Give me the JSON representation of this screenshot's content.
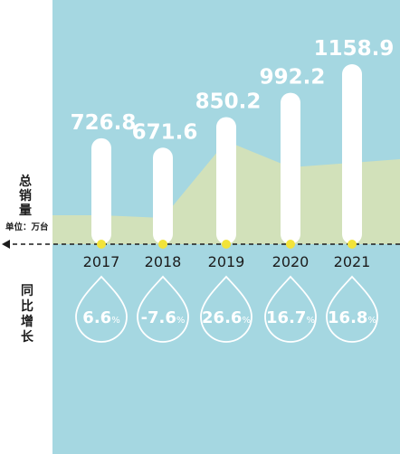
{
  "chart_data": {
    "type": "bar",
    "categories": [
      "2017",
      "2018",
      "2019",
      "2020",
      "2021"
    ],
    "series": [
      {
        "values": [
          726.8,
          671.6,
          850.2,
          992.2,
          1158.9
        ]
      }
    ],
    "growth": {
      "values": [
        6.6,
        -7.6,
        26.6,
        16.7,
        16.8
      ],
      "labels": [
        "6.6%",
        "-7.6%",
        "26.6%",
        "16.7%",
        "16.8%"
      ]
    },
    "value_labels": [
      "726.8",
      "671.6",
      "850.2",
      "992.2",
      "1158.9"
    ],
    "ylabel": "总销量",
    "unit": "单位：万台",
    "growth_label": "同比增长",
    "colors": {
      "background": "#a5d7e1",
      "left_panel": "#ffffff",
      "bar": "#ffffff",
      "area": "#d6e2b6",
      "dot": "#f2e33a",
      "baseline": "#1c1c1c",
      "text_dark": "#1c1c1c",
      "text_light": "#ffffff"
    }
  }
}
